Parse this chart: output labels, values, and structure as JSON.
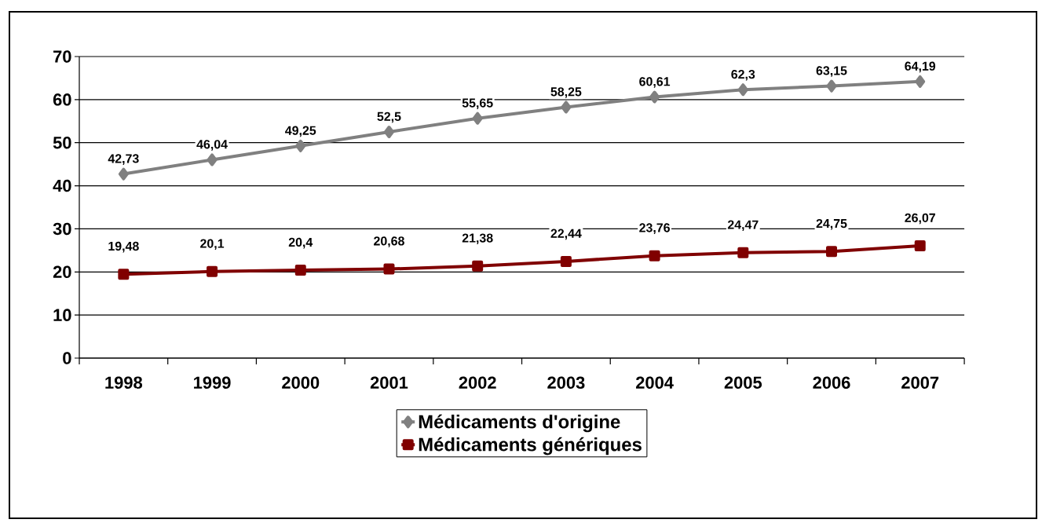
{
  "chart_data": {
    "type": "line",
    "categories": [
      "1998",
      "1999",
      "2000",
      "2001",
      "2002",
      "2003",
      "2004",
      "2005",
      "2006",
      "2007"
    ],
    "series": [
      {
        "name": "Médicaments d'origine",
        "color": "#808080",
        "marker": "diamond",
        "values": [
          42.73,
          46.04,
          49.25,
          52.5,
          55.65,
          58.25,
          60.61,
          62.3,
          63.15,
          64.19
        ],
        "value_labels": [
          "42,73",
          "46,04",
          "49,25",
          "52,5",
          "55,65",
          "58,25",
          "60,61",
          "62,3",
          "63,15",
          "64,19"
        ]
      },
      {
        "name": "Médicaments génériques",
        "color": "#800000",
        "marker": "square",
        "values": [
          19.48,
          20.1,
          20.4,
          20.68,
          21.38,
          22.44,
          23.76,
          24.47,
          24.75,
          26.07
        ],
        "value_labels": [
          "19,48",
          "20,1",
          "20,4",
          "20,68",
          "21,38",
          "22,44",
          "23,76",
          "24,47",
          "24,75",
          "26,07"
        ]
      }
    ],
    "ylim": [
      0,
      70
    ],
    "yticks": [
      0,
      10,
      20,
      30,
      40,
      50,
      60,
      70
    ],
    "grid": "y",
    "legend": "bottom",
    "line_style": "solid"
  }
}
